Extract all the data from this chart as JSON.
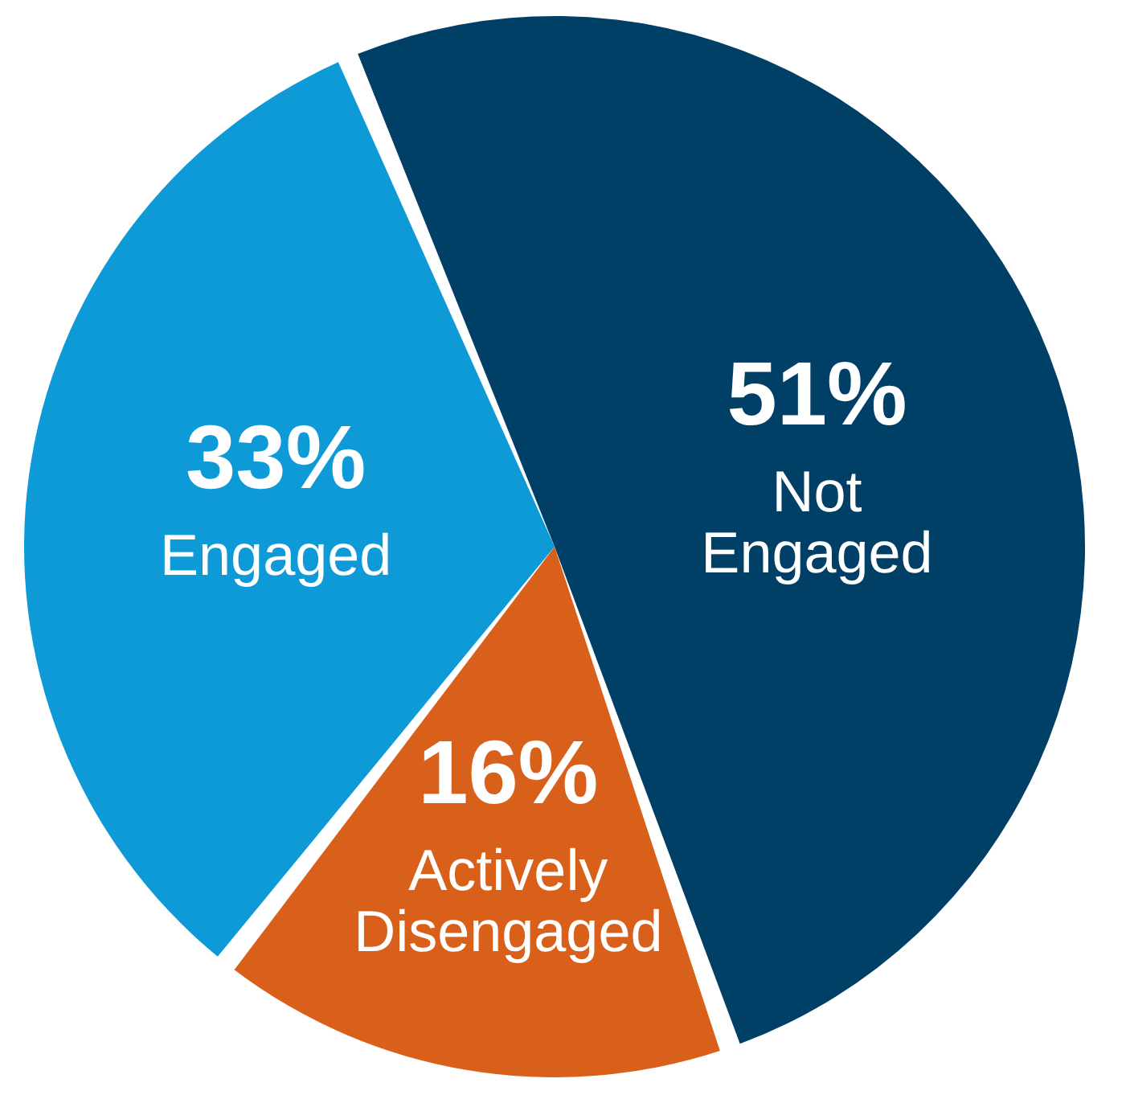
{
  "chart_data": {
    "type": "pie",
    "categories": [
      "Not Engaged",
      "Actively Disengaged",
      "Engaged"
    ],
    "values": [
      51,
      16,
      33
    ],
    "colors": [
      "#003f66",
      "#d9601a",
      "#0e9ad7"
    ],
    "value_labels": [
      "51%",
      "16%",
      "33%"
    ],
    "legend": false
  }
}
